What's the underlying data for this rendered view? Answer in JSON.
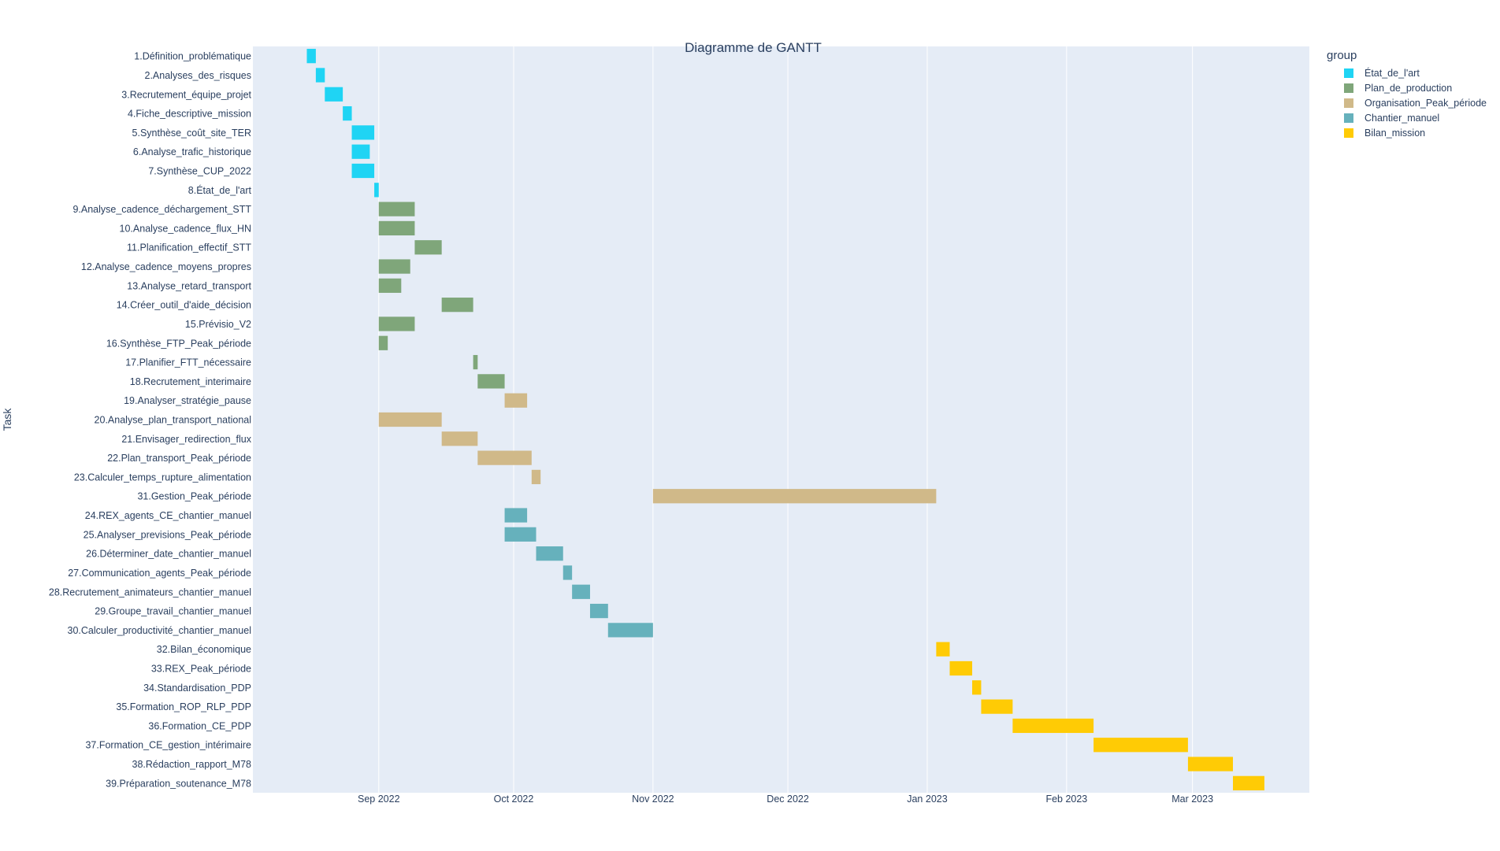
{
  "chart_data": {
    "type": "bar",
    "title": "Diagramme de GANTT",
    "xlabel": "",
    "ylabel": "Task",
    "legend_title": "group",
    "legend_position": "top-right",
    "grid": true,
    "x_range": [
      "2022-08-04",
      "2023-03-27"
    ],
    "x_ticks": [
      {
        "date": "2022-09-01",
        "label": "Sep 2022"
      },
      {
        "date": "2022-10-01",
        "label": "Oct 2022"
      },
      {
        "date": "2022-11-01",
        "label": "Nov 2022"
      },
      {
        "date": "2022-12-01",
        "label": "Dec 2022"
      },
      {
        "date": "2023-01-01",
        "label": "Jan 2023"
      },
      {
        "date": "2023-02-01",
        "label": "Feb 2023"
      },
      {
        "date": "2023-03-01",
        "label": "Mar 2023"
      }
    ],
    "groups": [
      {
        "name": "État_de_l'art",
        "color": "#1fd4f4"
      },
      {
        "name": "Plan_de_production",
        "color": "#7fa67a"
      },
      {
        "name": "Organisation_Peak_période",
        "color": "#d0b989"
      },
      {
        "name": "Chantier_manuel",
        "color": "#66b1bc"
      },
      {
        "name": "Bilan_mission",
        "color": "#ffcb05"
      }
    ],
    "tasks": [
      {
        "task": "1.Définition_problématique",
        "group": "État_de_l'art",
        "start": "2022-08-16",
        "end": "2022-08-18"
      },
      {
        "task": "2.Analyses_des_risques",
        "group": "État_de_l'art",
        "start": "2022-08-18",
        "end": "2022-08-20"
      },
      {
        "task": "3.Recrutement_équipe_projet",
        "group": "État_de_l'art",
        "start": "2022-08-20",
        "end": "2022-08-24"
      },
      {
        "task": "4.Fiche_descriptive_mission",
        "group": "État_de_l'art",
        "start": "2022-08-24",
        "end": "2022-08-26"
      },
      {
        "task": "5.Synthèse_coût_site_TER",
        "group": "État_de_l'art",
        "start": "2022-08-26",
        "end": "2022-08-31"
      },
      {
        "task": "6.Analyse_trafic_historique",
        "group": "État_de_l'art",
        "start": "2022-08-26",
        "end": "2022-08-30"
      },
      {
        "task": "7.Synthèse_CUP_2022",
        "group": "État_de_l'art",
        "start": "2022-08-26",
        "end": "2022-08-31"
      },
      {
        "task": "8.État_de_l'art",
        "group": "État_de_l'art",
        "start": "2022-08-31",
        "end": "2022-09-01"
      },
      {
        "task": "9.Analyse_cadence_déchargement_STT",
        "group": "Plan_de_production",
        "start": "2022-09-01",
        "end": "2022-09-09"
      },
      {
        "task": "10.Analyse_cadence_flux_HN",
        "group": "Plan_de_production",
        "start": "2022-09-01",
        "end": "2022-09-09"
      },
      {
        "task": "11.Planification_effectif_STT",
        "group": "Plan_de_production",
        "start": "2022-09-09",
        "end": "2022-09-15"
      },
      {
        "task": "12.Analyse_cadence_moyens_propres",
        "group": "Plan_de_production",
        "start": "2022-09-01",
        "end": "2022-09-08"
      },
      {
        "task": "13.Analyse_retard_transport",
        "group": "Plan_de_production",
        "start": "2022-09-01",
        "end": "2022-09-06"
      },
      {
        "task": "14.Créer_outil_d'aide_décision",
        "group": "Plan_de_production",
        "start": "2022-09-15",
        "end": "2022-09-22"
      },
      {
        "task": "15.Prévisio_V2",
        "group": "Plan_de_production",
        "start": "2022-09-01",
        "end": "2022-09-09"
      },
      {
        "task": "16.Synthèse_FTP_Peak_période",
        "group": "Plan_de_production",
        "start": "2022-09-01",
        "end": "2022-09-03"
      },
      {
        "task": "17.Planifier_FTT_nécessaire",
        "group": "Plan_de_production",
        "start": "2022-09-22",
        "end": "2022-09-23"
      },
      {
        "task": "18.Recrutement_interimaire",
        "group": "Plan_de_production",
        "start": "2022-09-23",
        "end": "2022-09-29"
      },
      {
        "task": "19.Analyser_stratégie_pause",
        "group": "Organisation_Peak_période",
        "start": "2022-09-29",
        "end": "2022-10-04"
      },
      {
        "task": "20.Analyse_plan_transport_national",
        "group": "Organisation_Peak_période",
        "start": "2022-09-01",
        "end": "2022-09-15"
      },
      {
        "task": "21.Envisager_redirection_flux",
        "group": "Organisation_Peak_période",
        "start": "2022-09-15",
        "end": "2022-09-23"
      },
      {
        "task": "22.Plan_transport_Peak_période",
        "group": "Organisation_Peak_période",
        "start": "2022-09-23",
        "end": "2022-10-05"
      },
      {
        "task": "23.Calculer_temps_rupture_alimentation",
        "group": "Organisation_Peak_période",
        "start": "2022-10-05",
        "end": "2022-10-07"
      },
      {
        "task": "31.Gestion_Peak_période",
        "group": "Organisation_Peak_période",
        "start": "2022-11-01",
        "end": "2023-01-03"
      },
      {
        "task": "24.REX_agents_CE_chantier_manuel",
        "group": "Chantier_manuel",
        "start": "2022-09-29",
        "end": "2022-10-04"
      },
      {
        "task": "25.Analyser_previsions_Peak_période",
        "group": "Chantier_manuel",
        "start": "2022-09-29",
        "end": "2022-10-06"
      },
      {
        "task": "26.Déterminer_date_chantier_manuel",
        "group": "Chantier_manuel",
        "start": "2022-10-06",
        "end": "2022-10-12"
      },
      {
        "task": "27.Communication_agents_Peak_période",
        "group": "Chantier_manuel",
        "start": "2022-10-12",
        "end": "2022-10-14"
      },
      {
        "task": "28.Recrutement_animateurs_chantier_manuel",
        "group": "Chantier_manuel",
        "start": "2022-10-14",
        "end": "2022-10-18"
      },
      {
        "task": "29.Groupe_travail_chantier_manuel",
        "group": "Chantier_manuel",
        "start": "2022-10-18",
        "end": "2022-10-22"
      },
      {
        "task": "30.Calculer_productivité_chantier_manuel",
        "group": "Chantier_manuel",
        "start": "2022-10-22",
        "end": "2022-11-01"
      },
      {
        "task": "32.Bilan_économique",
        "group": "Bilan_mission",
        "start": "2023-01-03",
        "end": "2023-01-06"
      },
      {
        "task": "33.REX_Peak_période",
        "group": "Bilan_mission",
        "start": "2023-01-06",
        "end": "2023-01-11"
      },
      {
        "task": "34.Standardisation_PDP",
        "group": "Bilan_mission",
        "start": "2023-01-11",
        "end": "2023-01-13"
      },
      {
        "task": "35.Formation_ROP_RLP_PDP",
        "group": "Bilan_mission",
        "start": "2023-01-13",
        "end": "2023-01-20"
      },
      {
        "task": "36.Formation_CE_PDP",
        "group": "Bilan_mission",
        "start": "2023-01-20",
        "end": "2023-02-07"
      },
      {
        "task": "37.Formation_CE_gestion_intérimaire",
        "group": "Bilan_mission",
        "start": "2023-02-07",
        "end": "2023-02-28"
      },
      {
        "task": "38.Rédaction_rapport_M78",
        "group": "Bilan_mission",
        "start": "2023-02-28",
        "end": "2023-03-10"
      },
      {
        "task": "39.Préparation_soutenance_M78",
        "group": "Bilan_mission",
        "start": "2023-03-10",
        "end": "2023-03-17"
      }
    ]
  }
}
